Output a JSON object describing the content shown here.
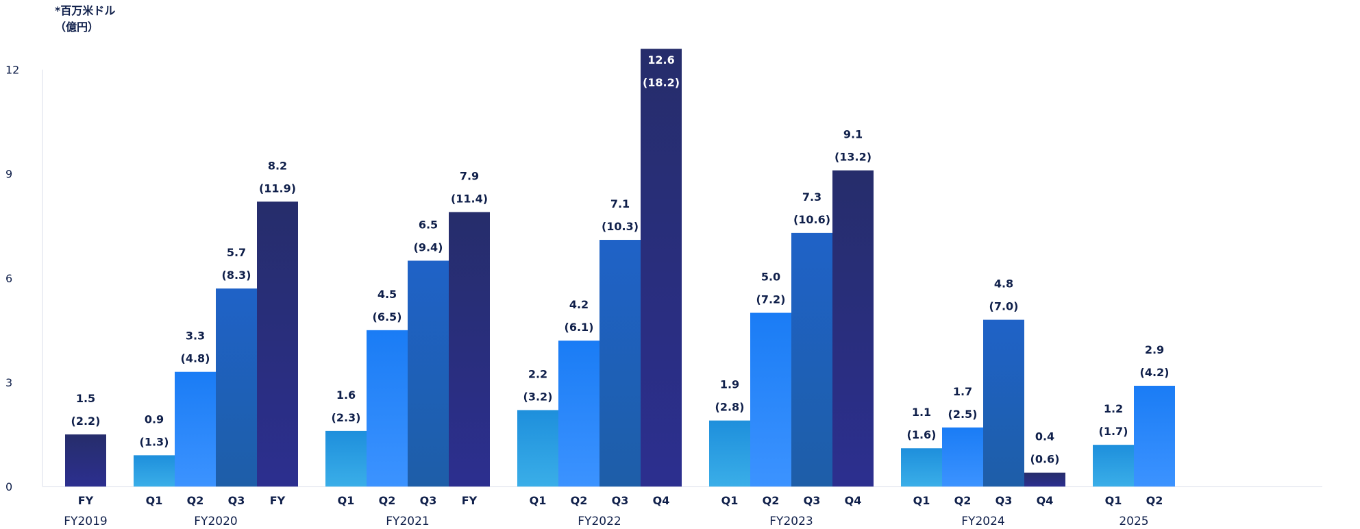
{
  "unit_line1": "*百万米ドル",
  "unit_line2": "（億円）",
  "chart_data": {
    "type": "bar",
    "ylim": [
      0,
      12
    ],
    "yticks": [
      "0",
      "3",
      "6",
      "9",
      "12"
    ],
    "groups": [
      {
        "label": "FY2019",
        "bars": [
          {
            "x": "FY",
            "value": 1.5,
            "value_label": "1.5",
            "yen_label": "(2.2)",
            "color": "fy"
          }
        ]
      },
      {
        "label": "FY2020",
        "bars": [
          {
            "x": "Q1",
            "value": 0.9,
            "value_label": "0.9",
            "yen_label": "(1.3)",
            "color": "q1"
          },
          {
            "x": "Q2",
            "value": 3.3,
            "value_label": "3.3",
            "yen_label": "(4.8)",
            "color": "q2"
          },
          {
            "x": "Q3",
            "value": 5.7,
            "value_label": "5.7",
            "yen_label": "(8.3)",
            "color": "q3"
          },
          {
            "x": "FY",
            "value": 8.2,
            "value_label": "8.2",
            "yen_label": "(11.9)",
            "color": "fy"
          }
        ]
      },
      {
        "label": "FY2021",
        "bars": [
          {
            "x": "Q1",
            "value": 1.6,
            "value_label": "1.6",
            "yen_label": "(2.3)",
            "color": "q1"
          },
          {
            "x": "Q2",
            "value": 4.5,
            "value_label": "4.5",
            "yen_label": "(6.5)",
            "color": "q2"
          },
          {
            "x": "Q3",
            "value": 6.5,
            "value_label": "6.5",
            "yen_label": "(9.4)",
            "color": "q3"
          },
          {
            "x": "FY",
            "value": 7.9,
            "value_label": "7.9",
            "yen_label": "(11.4)",
            "color": "fy"
          }
        ]
      },
      {
        "label": "FY2022",
        "bars": [
          {
            "x": "Q1",
            "value": 2.2,
            "value_label": "2.2",
            "yen_label": "(3.2)",
            "color": "q1"
          },
          {
            "x": "Q2",
            "value": 4.2,
            "value_label": "4.2",
            "yen_label": "(6.1)",
            "color": "q2"
          },
          {
            "x": "Q3",
            "value": 7.1,
            "value_label": "7.1",
            "yen_label": "(10.3)",
            "color": "q3"
          },
          {
            "x": "Q4",
            "value": 12.6,
            "value_label": "12.6",
            "yen_label": "(18.2)",
            "color": "fy"
          }
        ]
      },
      {
        "label": "FY2023",
        "bars": [
          {
            "x": "Q1",
            "value": 1.9,
            "value_label": "1.9",
            "yen_label": "(2.8)",
            "color": "q1"
          },
          {
            "x": "Q2",
            "value": 5.0,
            "value_label": "5.0",
            "yen_label": "(7.2)",
            "color": "q2"
          },
          {
            "x": "Q3",
            "value": 7.3,
            "value_label": "7.3",
            "yen_label": "(10.6)",
            "color": "q3"
          },
          {
            "x": "Q4",
            "value": 9.1,
            "value_label": "9.1",
            "yen_label": "(13.2)",
            "color": "fy"
          }
        ]
      },
      {
        "label": "FY2024",
        "bars": [
          {
            "x": "Q1",
            "value": 1.1,
            "value_label": "1.1",
            "yen_label": "(1.6)",
            "color": "q1"
          },
          {
            "x": "Q2",
            "value": 1.7,
            "value_label": "1.7",
            "yen_label": "(2.5)",
            "color": "q2"
          },
          {
            "x": "Q3",
            "value": 4.8,
            "value_label": "4.8",
            "yen_label": "(7.0)",
            "color": "q3"
          },
          {
            "x": "Q4",
            "value": 0.4,
            "value_label": "0.4",
            "yen_label": "(0.6)",
            "color": "fy"
          }
        ]
      },
      {
        "label": "2025",
        "bars": [
          {
            "x": "Q1",
            "value": 1.2,
            "value_label": "1.2",
            "yen_label": "(1.7)",
            "color": "q1"
          },
          {
            "x": "Q2",
            "value": 2.9,
            "value_label": "2.9",
            "yen_label": "(4.2)",
            "color": "q2"
          }
        ]
      }
    ],
    "colors": {
      "q1": [
        "#3aaee8",
        "#1e8fdc"
      ],
      "q2": [
        "#3c93ff",
        "#1a7cf5"
      ],
      "q3": [
        "#1e5ea8",
        "#1f62c7"
      ],
      "fy": [
        "#2c2f8f",
        "#262d6b"
      ],
      "text": "#0f1f4a",
      "axis": "#d9dde8"
    }
  }
}
